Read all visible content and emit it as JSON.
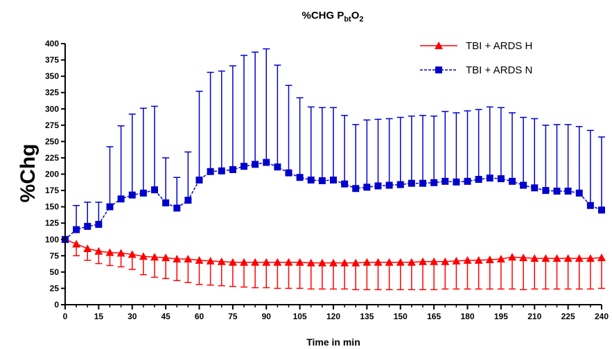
{
  "chart_data": {
    "type": "line",
    "title": "%CHG P",
    "title_sub": "bt",
    "title_rest": "O",
    "title_sub2": "2",
    "xlabel": "Time in min",
    "ylabel": "%Chg",
    "xlim": [
      0,
      240
    ],
    "ylim": [
      0,
      400
    ],
    "xticks": [
      0,
      15,
      30,
      45,
      60,
      75,
      90,
      105,
      120,
      135,
      150,
      165,
      180,
      195,
      210,
      225,
      240
    ],
    "yticks": [
      0,
      25,
      50,
      75,
      100,
      125,
      150,
      175,
      200,
      225,
      250,
      275,
      300,
      325,
      350,
      375,
      400
    ],
    "legend_position": "top-right",
    "grid": false,
    "series": [
      {
        "name": "TBI + ARDS H",
        "color": "#ff0000",
        "marker": "triangle",
        "line_style": "solid",
        "error_direction": "down",
        "x": [
          0,
          5,
          10,
          15,
          20,
          25,
          30,
          35,
          40,
          45,
          50,
          55,
          60,
          65,
          70,
          75,
          80,
          85,
          90,
          95,
          100,
          105,
          110,
          115,
          120,
          125,
          130,
          135,
          140,
          145,
          150,
          155,
          160,
          165,
          170,
          175,
          180,
          185,
          190,
          195,
          200,
          205,
          210,
          215,
          220,
          225,
          230,
          235,
          240
        ],
        "y": [
          100,
          93,
          86,
          82,
          80,
          79,
          77,
          74,
          73,
          72,
          70,
          70,
          68,
          67,
          66,
          65,
          65,
          65,
          65,
          65,
          65,
          65,
          64,
          64,
          64,
          64,
          64,
          65,
          65,
          65,
          65,
          65,
          66,
          66,
          66,
          67,
          68,
          68,
          69,
          70,
          73,
          72,
          71,
          71,
          71,
          71,
          71,
          71,
          72
        ],
        "error_low": [
          100,
          75,
          68,
          63,
          60,
          58,
          54,
          46,
          42,
          40,
          37,
          34,
          31,
          30,
          29,
          28,
          27,
          26,
          26,
          25,
          25,
          25,
          24,
          24,
          24,
          24,
          23,
          23,
          23,
          23,
          23,
          23,
          23,
          23,
          24,
          24,
          24,
          24,
          24,
          24,
          24,
          23,
          24,
          24,
          24,
          24,
          24,
          24,
          25
        ]
      },
      {
        "name": "TBI + ARDS N",
        "color": "#0000cc",
        "marker": "square",
        "line_style": "dashed",
        "error_direction": "up",
        "x": [
          0,
          5,
          10,
          15,
          20,
          25,
          30,
          35,
          40,
          45,
          50,
          55,
          60,
          65,
          70,
          75,
          80,
          85,
          90,
          95,
          100,
          105,
          110,
          115,
          120,
          125,
          130,
          135,
          140,
          145,
          150,
          155,
          160,
          165,
          170,
          175,
          180,
          185,
          190,
          195,
          200,
          205,
          210,
          215,
          220,
          225,
          230,
          235,
          240
        ],
        "y": [
          100,
          115,
          120,
          123,
          150,
          162,
          168,
          171,
          176,
          156,
          148,
          160,
          191,
          204,
          205,
          207,
          212,
          215,
          218,
          211,
          202,
          195,
          191,
          190,
          191,
          185,
          178,
          180,
          182,
          183,
          184,
          186,
          186,
          187,
          189,
          188,
          189,
          192,
          194,
          193,
          189,
          183,
          179,
          175,
          174,
          174,
          171,
          152,
          145
        ],
        "error_high": [
          100,
          152,
          157,
          157,
          242,
          274,
          292,
          301,
          304,
          225,
          195,
          234,
          327,
          356,
          358,
          366,
          382,
          387,
          392,
          367,
          336,
          317,
          303,
          302,
          302,
          290,
          276,
          283,
          284,
          285,
          287,
          289,
          290,
          289,
          296,
          294,
          297,
          299,
          303,
          302,
          294,
          287,
          285,
          275,
          276,
          276,
          273,
          267,
          257
        ]
      }
    ]
  }
}
